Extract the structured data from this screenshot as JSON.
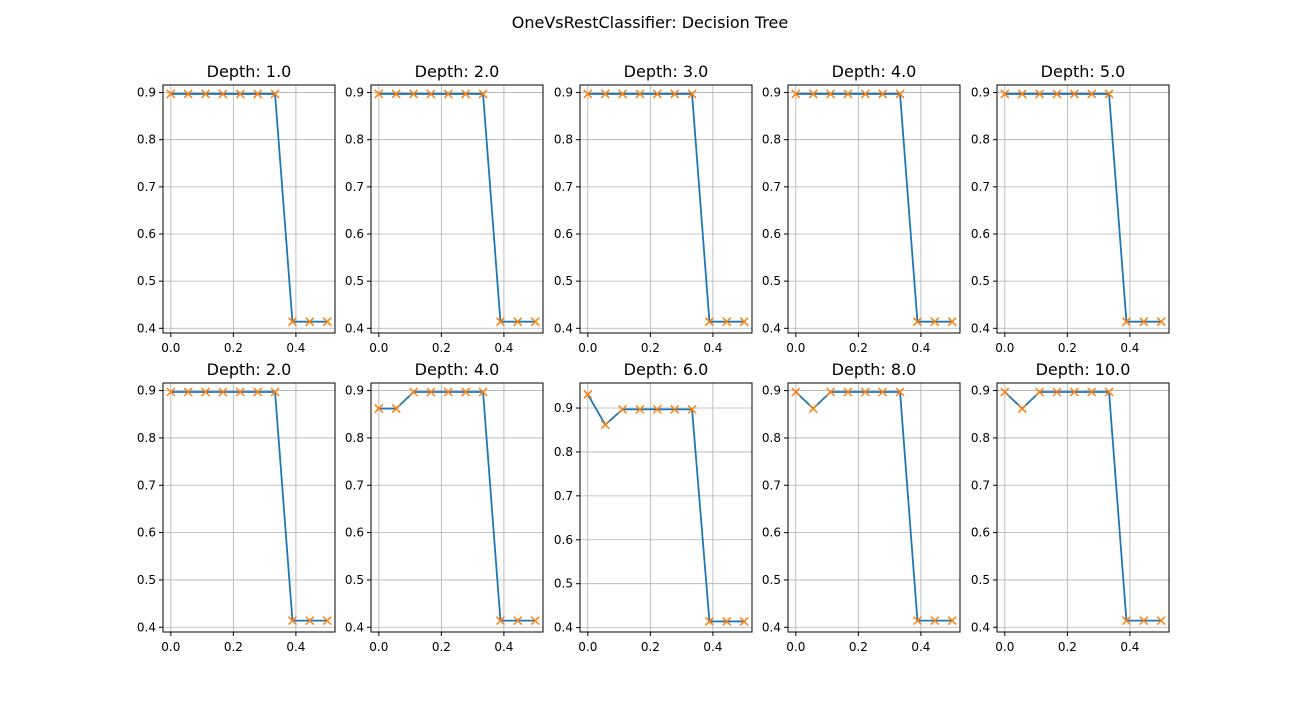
{
  "figure_title": "OneVsRestClassifier: Decision Tree",
  "colors": {
    "line": "#1f77b4",
    "marker": "#ff7f0e",
    "grid": "#b0b0b0"
  },
  "chart_data": [
    {
      "type": "line",
      "title": "Depth: 1.0",
      "x": [
        0.0,
        0.0556,
        0.1111,
        0.1667,
        0.2222,
        0.2778,
        0.3333,
        0.3889,
        0.4444,
        0.5
      ],
      "y": [
        0.897,
        0.897,
        0.897,
        0.897,
        0.897,
        0.897,
        0.897,
        0.414,
        0.414,
        0.414
      ],
      "xlim": [
        -0.025,
        0.525
      ],
      "ylim": [
        0.39,
        0.916
      ],
      "xticks": [
        0.0,
        0.2,
        0.4
      ],
      "xticklabels": [
        "0.0",
        "0.2",
        "0.4"
      ],
      "yticks": [
        0.4,
        0.5,
        0.6,
        0.7,
        0.8,
        0.9
      ],
      "yticklabels": [
        "0.4",
        "0.5",
        "0.6",
        "0.7",
        "0.8",
        "0.9"
      ],
      "grid": true,
      "marker": "x"
    },
    {
      "type": "line",
      "title": "Depth: 2.0",
      "x": [
        0.0,
        0.0556,
        0.1111,
        0.1667,
        0.2222,
        0.2778,
        0.3333,
        0.3889,
        0.4444,
        0.5
      ],
      "y": [
        0.897,
        0.897,
        0.897,
        0.897,
        0.897,
        0.897,
        0.897,
        0.414,
        0.414,
        0.414
      ],
      "xlim": [
        -0.025,
        0.525
      ],
      "ylim": [
        0.39,
        0.916
      ],
      "xticks": [
        0.0,
        0.2,
        0.4
      ],
      "xticklabels": [
        "0.0",
        "0.2",
        "0.4"
      ],
      "yticks": [
        0.4,
        0.5,
        0.6,
        0.7,
        0.8,
        0.9
      ],
      "yticklabels": [
        "0.4",
        "0.5",
        "0.6",
        "0.7",
        "0.8",
        "0.9"
      ],
      "grid": true,
      "marker": "x"
    },
    {
      "type": "line",
      "title": "Depth: 3.0",
      "x": [
        0.0,
        0.0556,
        0.1111,
        0.1667,
        0.2222,
        0.2778,
        0.3333,
        0.3889,
        0.4444,
        0.5
      ],
      "y": [
        0.897,
        0.897,
        0.897,
        0.897,
        0.897,
        0.897,
        0.897,
        0.414,
        0.414,
        0.414
      ],
      "xlim": [
        -0.025,
        0.525
      ],
      "ylim": [
        0.39,
        0.916
      ],
      "xticks": [
        0.0,
        0.2,
        0.4
      ],
      "xticklabels": [
        "0.0",
        "0.2",
        "0.4"
      ],
      "yticks": [
        0.4,
        0.5,
        0.6,
        0.7,
        0.8,
        0.9
      ],
      "yticklabels": [
        "0.4",
        "0.5",
        "0.6",
        "0.7",
        "0.8",
        "0.9"
      ],
      "grid": true,
      "marker": "x"
    },
    {
      "type": "line",
      "title": "Depth: 4.0",
      "x": [
        0.0,
        0.0556,
        0.1111,
        0.1667,
        0.2222,
        0.2778,
        0.3333,
        0.3889,
        0.4444,
        0.5
      ],
      "y": [
        0.897,
        0.897,
        0.897,
        0.897,
        0.897,
        0.897,
        0.897,
        0.414,
        0.414,
        0.414
      ],
      "xlim": [
        -0.025,
        0.525
      ],
      "ylim": [
        0.39,
        0.916
      ],
      "xticks": [
        0.0,
        0.2,
        0.4
      ],
      "xticklabels": [
        "0.0",
        "0.2",
        "0.4"
      ],
      "yticks": [
        0.4,
        0.5,
        0.6,
        0.7,
        0.8,
        0.9
      ],
      "yticklabels": [
        "0.4",
        "0.5",
        "0.6",
        "0.7",
        "0.8",
        "0.9"
      ],
      "grid": true,
      "marker": "x"
    },
    {
      "type": "line",
      "title": "Depth: 5.0",
      "x": [
        0.0,
        0.0556,
        0.1111,
        0.1667,
        0.2222,
        0.2778,
        0.3333,
        0.3889,
        0.4444,
        0.5
      ],
      "y": [
        0.897,
        0.897,
        0.897,
        0.897,
        0.897,
        0.897,
        0.897,
        0.414,
        0.414,
        0.414
      ],
      "xlim": [
        -0.025,
        0.525
      ],
      "ylim": [
        0.39,
        0.916
      ],
      "xticks": [
        0.0,
        0.2,
        0.4
      ],
      "xticklabels": [
        "0.0",
        "0.2",
        "0.4"
      ],
      "yticks": [
        0.4,
        0.5,
        0.6,
        0.7,
        0.8,
        0.9
      ],
      "yticklabels": [
        "0.4",
        "0.5",
        "0.6",
        "0.7",
        "0.8",
        "0.9"
      ],
      "grid": true,
      "marker": "x"
    },
    {
      "type": "line",
      "title": "Depth: 2.0",
      "x": [
        0.0,
        0.0556,
        0.1111,
        0.1667,
        0.2222,
        0.2778,
        0.3333,
        0.3889,
        0.4444,
        0.5
      ],
      "y": [
        0.897,
        0.897,
        0.897,
        0.897,
        0.897,
        0.897,
        0.897,
        0.414,
        0.414,
        0.414
      ],
      "xlim": [
        -0.025,
        0.525
      ],
      "ylim": [
        0.39,
        0.916
      ],
      "xticks": [
        0.0,
        0.2,
        0.4
      ],
      "xticklabels": [
        "0.0",
        "0.2",
        "0.4"
      ],
      "yticks": [
        0.4,
        0.5,
        0.6,
        0.7,
        0.8,
        0.9
      ],
      "yticklabels": [
        "0.4",
        "0.5",
        "0.6",
        "0.7",
        "0.8",
        "0.9"
      ],
      "grid": true,
      "marker": "x"
    },
    {
      "type": "line",
      "title": "Depth: 4.0",
      "x": [
        0.0,
        0.0556,
        0.1111,
        0.1667,
        0.2222,
        0.2778,
        0.3333,
        0.3889,
        0.4444,
        0.5
      ],
      "y": [
        0.862,
        0.862,
        0.897,
        0.897,
        0.897,
        0.897,
        0.897,
        0.414,
        0.414,
        0.414
      ],
      "xlim": [
        -0.025,
        0.525
      ],
      "ylim": [
        0.39,
        0.916
      ],
      "xticks": [
        0.0,
        0.2,
        0.4
      ],
      "xticklabels": [
        "0.0",
        "0.2",
        "0.4"
      ],
      "yticks": [
        0.4,
        0.5,
        0.6,
        0.7,
        0.8,
        0.9
      ],
      "yticklabels": [
        "0.4",
        "0.5",
        "0.6",
        "0.7",
        "0.8",
        "0.9"
      ],
      "grid": true,
      "marker": "x"
    },
    {
      "type": "line",
      "title": "Depth: 6.0",
      "x": [
        0.0,
        0.0556,
        0.1111,
        0.1667,
        0.2222,
        0.2778,
        0.3333,
        0.3889,
        0.4444,
        0.5
      ],
      "y": [
        0.931,
        0.862,
        0.897,
        0.897,
        0.897,
        0.897,
        0.897,
        0.414,
        0.414,
        0.414
      ],
      "xlim": [
        -0.025,
        0.525
      ],
      "ylim": [
        0.39,
        0.957
      ],
      "xticks": [
        0.0,
        0.2,
        0.4
      ],
      "xticklabels": [
        "0.0",
        "0.2",
        "0.4"
      ],
      "yticks": [
        0.4,
        0.5,
        0.6,
        0.7,
        0.8,
        0.9
      ],
      "yticklabels": [
        "0.4",
        "0.5",
        "0.6",
        "0.7",
        "0.8",
        "0.9"
      ],
      "grid": true,
      "marker": "x"
    },
    {
      "type": "line",
      "title": "Depth: 8.0",
      "x": [
        0.0,
        0.0556,
        0.1111,
        0.1667,
        0.2222,
        0.2778,
        0.3333,
        0.3889,
        0.4444,
        0.5
      ],
      "y": [
        0.897,
        0.862,
        0.897,
        0.897,
        0.897,
        0.897,
        0.897,
        0.414,
        0.414,
        0.414
      ],
      "xlim": [
        -0.025,
        0.525
      ],
      "ylim": [
        0.39,
        0.916
      ],
      "xticks": [
        0.0,
        0.2,
        0.4
      ],
      "xticklabels": [
        "0.0",
        "0.2",
        "0.4"
      ],
      "yticks": [
        0.4,
        0.5,
        0.6,
        0.7,
        0.8,
        0.9
      ],
      "yticklabels": [
        "0.4",
        "0.5",
        "0.6",
        "0.7",
        "0.8",
        "0.9"
      ],
      "grid": true,
      "marker": "x"
    },
    {
      "type": "line",
      "title": "Depth: 10.0",
      "x": [
        0.0,
        0.0556,
        0.1111,
        0.1667,
        0.2222,
        0.2778,
        0.3333,
        0.3889,
        0.4444,
        0.5
      ],
      "y": [
        0.897,
        0.862,
        0.897,
        0.897,
        0.897,
        0.897,
        0.897,
        0.414,
        0.414,
        0.414
      ],
      "xlim": [
        -0.025,
        0.525
      ],
      "ylim": [
        0.39,
        0.916
      ],
      "xticks": [
        0.0,
        0.2,
        0.4
      ],
      "xticklabels": [
        "0.0",
        "0.2",
        "0.4"
      ],
      "yticks": [
        0.4,
        0.5,
        0.6,
        0.7,
        0.8,
        0.9
      ],
      "yticklabels": [
        "0.4",
        "0.5",
        "0.6",
        "0.7",
        "0.8",
        "0.9"
      ],
      "grid": true,
      "marker": "x"
    }
  ]
}
